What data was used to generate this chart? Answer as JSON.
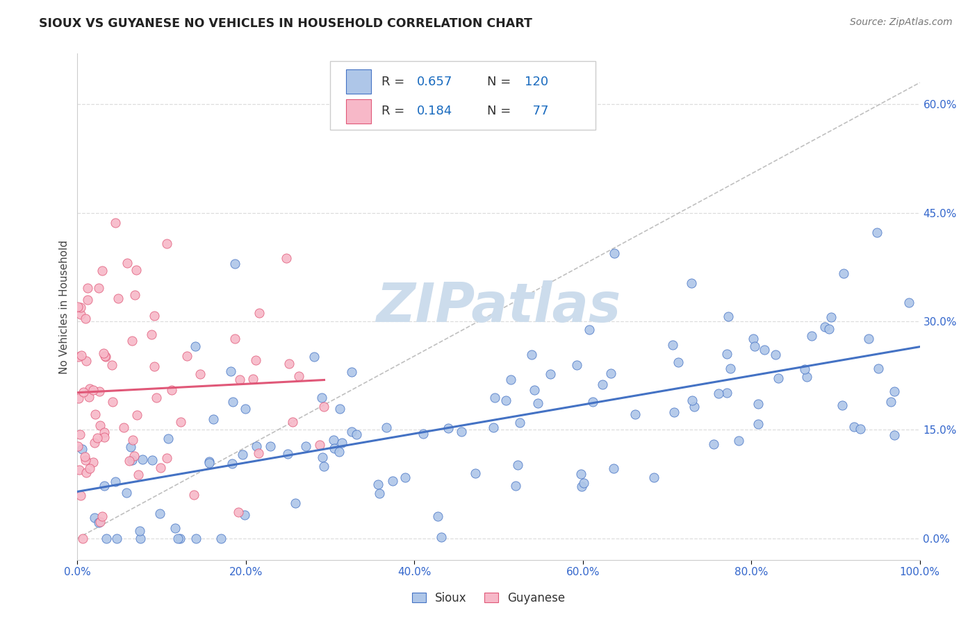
{
  "title": "SIOUX VS GUYANESE NO VEHICLES IN HOUSEHOLD CORRELATION CHART",
  "source_text": "Source: ZipAtlas.com",
  "ylabel": "No Vehicles in Household",
  "xlim": [
    0,
    100
  ],
  "ylim": [
    -3,
    67
  ],
  "sioux_R": 0.657,
  "sioux_N": 120,
  "guyanese_R": 0.184,
  "guyanese_N": 77,
  "sioux_color": "#aec6e8",
  "sioux_edge_color": "#4472c4",
  "guyanese_color": "#f7b8c8",
  "guyanese_edge_color": "#e05878",
  "yticks": [
    0,
    15,
    30,
    45,
    60
  ],
  "ytick_labels": [
    "0.0%",
    "15.0%",
    "30.0%",
    "45.0%",
    "60.0%"
  ],
  "xticks": [
    0,
    20,
    40,
    60,
    80,
    100
  ],
  "xtick_labels": [
    "0.0%",
    "20.0%",
    "40.0%",
    "60.0%",
    "80.0%",
    "100.0%"
  ],
  "background_color": "#ffffff",
  "grid_color": "#dddddd",
  "watermark_text": "ZIPatlas",
  "watermark_color": "#ccdcec",
  "legend_blue_color": "#1a6bbf",
  "title_color": "#222222",
  "source_color": "#777777",
  "tick_color": "#3366cc",
  "ylabel_color": "#444444"
}
